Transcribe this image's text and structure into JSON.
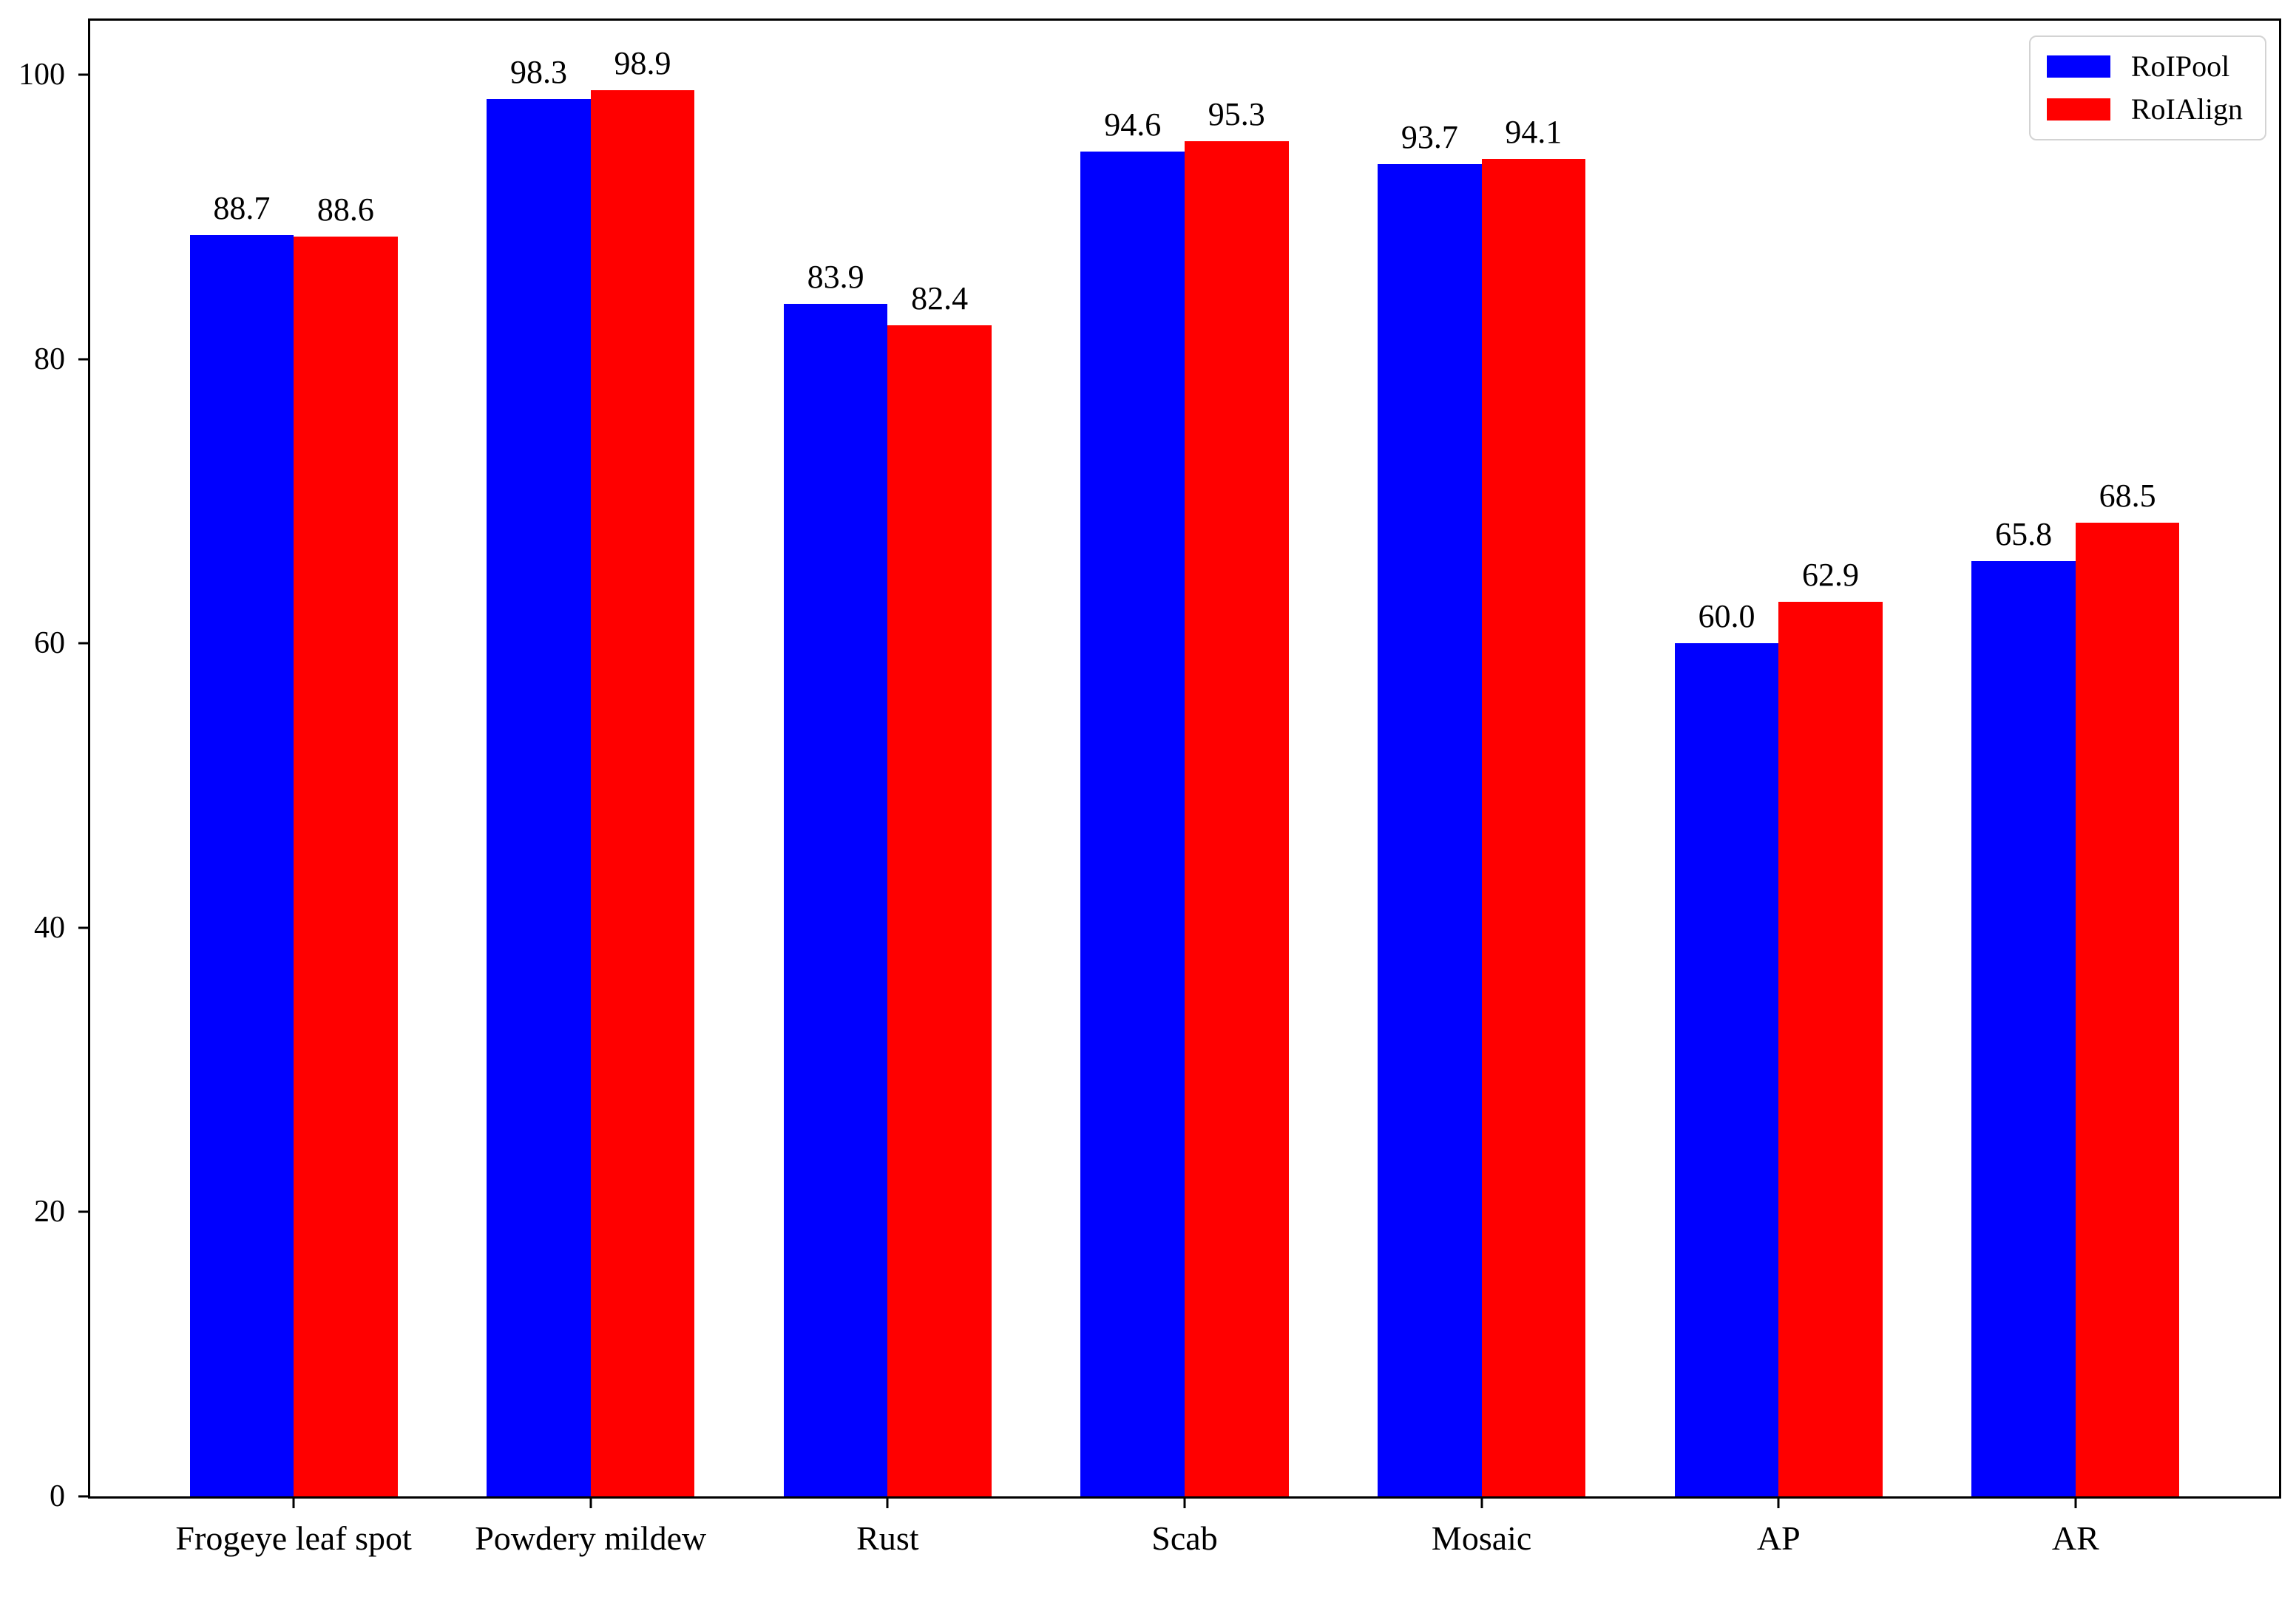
{
  "chart_data": {
    "type": "bar",
    "title": "",
    "xlabel": "",
    "ylabel": "",
    "categories": [
      "Frogeye leaf spot",
      "Powdery mildew",
      "Rust",
      "Scab",
      "Mosaic",
      "AP",
      "AR"
    ],
    "series": [
      {
        "name": "RoIPool",
        "color": "#0000ff",
        "values": [
          88.7,
          98.3,
          83.9,
          94.6,
          93.7,
          60.0,
          65.8
        ],
        "labels": [
          "88.7",
          "98.3",
          "83.9",
          "94.6",
          "93.7",
          "60.0",
          "65.8"
        ]
      },
      {
        "name": "RoIAlign",
        "color": "#ff0000",
        "values": [
          88.6,
          98.9,
          82.4,
          95.3,
          94.1,
          62.9,
          68.5
        ],
        "labels": [
          "88.6",
          "98.9",
          "82.4",
          "95.3",
          "94.1",
          "62.9",
          "68.5"
        ]
      }
    ],
    "ylim": [
      0,
      103.8
    ],
    "yticks": [
      0,
      20,
      40,
      60,
      80,
      100
    ],
    "bar_width_fraction": 0.35,
    "x_margin_fraction": 0.05,
    "grid": false,
    "value_labels": true,
    "legend_position": "upper right"
  },
  "colors": {
    "axis": "#000000",
    "background": "#ffffff",
    "legend_border": "#d3d3d3"
  }
}
